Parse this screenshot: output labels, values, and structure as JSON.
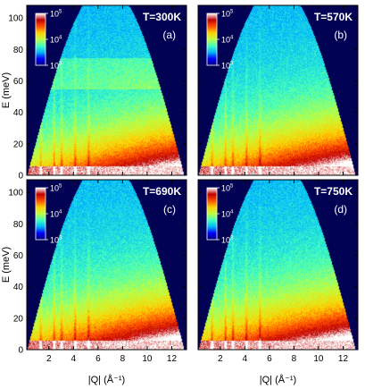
{
  "chart_data": [
    {
      "type": "heatmap",
      "temperature_label": "T=300K",
      "panel_label": "(a)",
      "qe_peak_fraction": 0.75
    },
    {
      "type": "heatmap",
      "temperature_label": "T=570K",
      "panel_label": "(b)",
      "qe_peak_fraction": 0.8
    },
    {
      "type": "heatmap",
      "temperature_label": "T=690K",
      "panel_label": "(c)",
      "qe_peak_fraction": 0.82
    },
    {
      "type": "heatmap",
      "temperature_label": "T=750K",
      "panel_label": "(d)",
      "qe_peak_fraction": 0.84
    }
  ],
  "axes": {
    "xlabel": "|Q| (Å⁻¹)",
    "ylabel": "E (meV)",
    "xlim": [
      0.2,
      13.2
    ],
    "ylim": [
      0,
      108
    ],
    "xticks": [
      2,
      4,
      6,
      8,
      10,
      12
    ],
    "xtick_labels": [
      "2",
      "4",
      "6",
      "8",
      "10",
      "12"
    ],
    "yticks": [
      0,
      20,
      40,
      60,
      80,
      100
    ],
    "ytick_labels": [
      "0",
      "20",
      "40",
      "60",
      "80",
      "100"
    ]
  },
  "colorbar": {
    "scale": "log",
    "min": 1000,
    "max": 100000,
    "ticks": [
      {
        "base": "10",
        "exp": "5",
        "value": 100000
      },
      {
        "base": "10",
        "exp": "4",
        "value": 10000
      },
      {
        "base": "10",
        "exp": "3",
        "value": 1000
      }
    ],
    "colormap": [
      "#00007f",
      "#0000ff",
      "#00b7ff",
      "#40ffbf",
      "#c0ff40",
      "#ffd000",
      "#ff5000",
      "#c00000",
      "#ffffff"
    ]
  },
  "colors": {
    "background": "#020254",
    "axis": "#000000"
  }
}
